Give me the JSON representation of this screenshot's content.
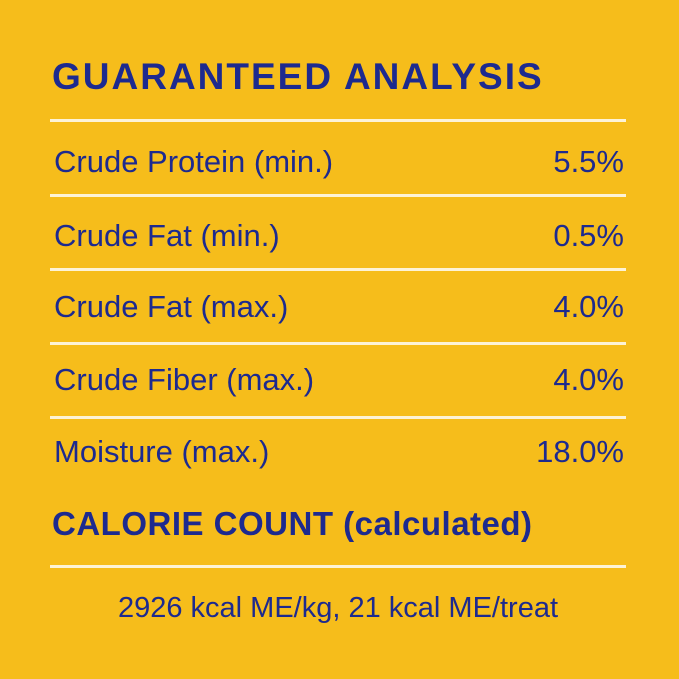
{
  "title": "GUARANTEED ANALYSIS",
  "rows": [
    {
      "label": "Crude Protein (min.)",
      "value": "5.5%"
    },
    {
      "label": "Crude Fat (min.)",
      "value": "0.5%"
    },
    {
      "label": "Crude Fat (max.)",
      "value": "4.0%"
    },
    {
      "label": "Crude Fiber (max.)",
      "value": "4.0%"
    },
    {
      "label": "Moisture (max.)",
      "value": "18.0%"
    }
  ],
  "calorie_heading": "CALORIE COUNT (calculated)",
  "calorie_text": "2926 kcal ME/kg, 21 kcal ME/treat",
  "colors": {
    "background": "#f6bd1b",
    "text": "#1d2a8f",
    "divider": "#fdf3d6"
  }
}
